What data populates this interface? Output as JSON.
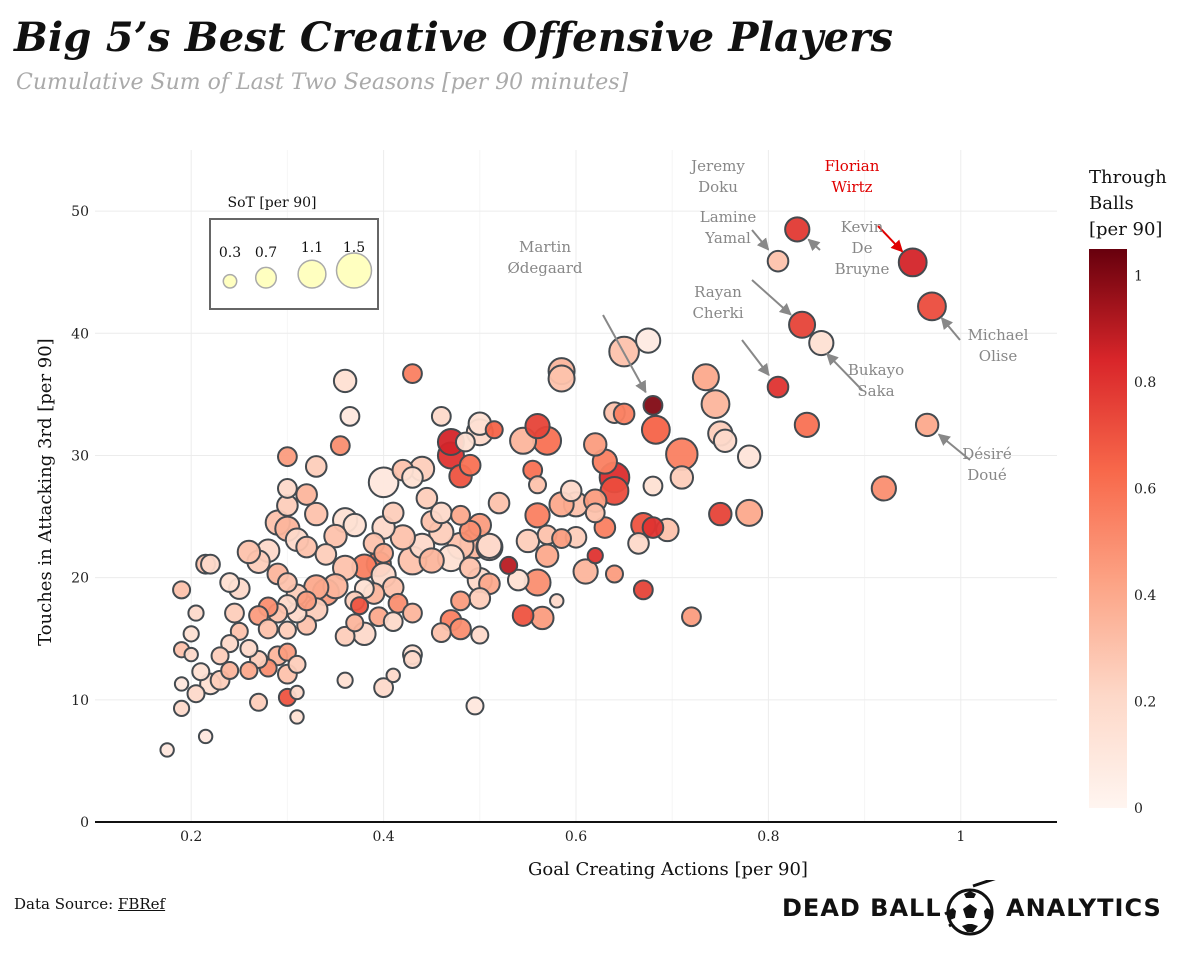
{
  "title": "Big 5’s Best Creative Offensive Players",
  "subtitle": "Cumulative Sum of Last Two Seasons [per 90 minutes]",
  "source": {
    "prefix": "Data Source: ",
    "link": "FBRef"
  },
  "brand": {
    "left": "DEAD BALL",
    "right": "ANALYTICS"
  },
  "colors": {
    "low": "#fff5f0",
    "mid1": "#fcbba1",
    "mid2": "#fb6a4a",
    "mid3": "#cb181d",
    "high": "#67000d",
    "highlight": "#e00000",
    "annotation": "#888888"
  },
  "chart_data": {
    "type": "scatter",
    "title": "Big 5’s Best Creative Offensive Players",
    "xlabel": "Goal Creating Actions [per 90]",
    "ylabel": "Touches in Attacking 3rd [per 90]",
    "xlim": [
      0.1,
      1.1
    ],
    "ylim": [
      0,
      55
    ],
    "xticks": [
      0.2,
      0.4,
      0.6,
      0.8,
      1
    ],
    "xtick_labels": [
      "0.2",
      "0.4",
      "0.6",
      "0.8",
      "1"
    ],
    "yticks": [
      0,
      10,
      20,
      30,
      40,
      50
    ],
    "size_legend": {
      "title": "SoT [per 90]",
      "values": [
        0.3,
        0.7,
        1.1,
        1.5
      ],
      "labels": [
        "0.3",
        "0.7",
        "1.1",
        "1.5"
      ]
    },
    "colorbar": {
      "title_lines": [
        "Through",
        "Balls",
        "[per 90]"
      ],
      "range": [
        0,
        1.05
      ],
      "ticks": [
        0,
        0.2,
        0.4,
        0.6,
        0.8,
        1
      ],
      "tick_labels": [
        "0",
        "0.2",
        "0.4",
        "0.6",
        "0.8",
        "1"
      ]
    },
    "annotations": [
      {
        "lines": [
          "Florian",
          "Wirtz"
        ],
        "player": [
          0.95,
          45.8
        ],
        "highlight": true
      },
      {
        "lines": [
          "Jeremy",
          "Doku"
        ],
        "player": [
          0.81,
          45.9
        ]
      },
      {
        "lines": [
          "Kevin",
          "De",
          "Bruyne"
        ],
        "player": [
          0.83,
          48.5
        ]
      },
      {
        "lines": [
          "Lamine",
          "Yamal"
        ],
        "player": [
          0.835,
          40.7
        ]
      },
      {
        "lines": [
          "Michael",
          "Olise"
        ],
        "player": [
          0.97,
          42.2
        ]
      },
      {
        "lines": [
          "Martin",
          "Ødegaard"
        ],
        "player": [
          0.68,
          34.1
        ]
      },
      {
        "lines": [
          "Rayan",
          "Cherki"
        ],
        "player": [
          0.81,
          35.6
        ]
      },
      {
        "lines": [
          "Bukayo",
          "Saka"
        ],
        "player": [
          0.85,
          39.2
        ]
      },
      {
        "lines": [
          "Désiré",
          "Doué"
        ],
        "player": [
          0.965,
          32.5
        ]
      }
    ],
    "points": [
      [
        0.95,
        45.8,
        1.1,
        0.85
      ],
      [
        0.97,
        42.2,
        1.1,
        0.72
      ],
      [
        0.83,
        48.5,
        0.9,
        0.78
      ],
      [
        0.81,
        45.9,
        0.7,
        0.3
      ],
      [
        0.835,
        40.7,
        1.0,
        0.75
      ],
      [
        0.855,
        39.2,
        0.9,
        0.15
      ],
      [
        0.81,
        35.6,
        0.7,
        0.8
      ],
      [
        0.84,
        32.5,
        0.9,
        0.6
      ],
      [
        0.965,
        32.5,
        0.8,
        0.4
      ],
      [
        0.92,
        27.3,
        0.9,
        0.5
      ],
      [
        0.68,
        34.1,
        0.6,
        1.0
      ],
      [
        0.683,
        32.1,
        1.1,
        0.65
      ],
      [
        0.65,
        38.5,
        1.2,
        0.3
      ],
      [
        0.675,
        39.4,
        0.9,
        0.08
      ],
      [
        0.735,
        36.4,
        1.0,
        0.4
      ],
      [
        0.745,
        34.2,
        1.1,
        0.35
      ],
      [
        0.71,
        30.1,
        1.3,
        0.55
      ],
      [
        0.75,
        31.8,
        0.9,
        0.25
      ],
      [
        0.755,
        31.2,
        0.8,
        0.2
      ],
      [
        0.78,
        29.9,
        0.8,
        0.12
      ],
      [
        0.75,
        25.2,
        0.8,
        0.75
      ],
      [
        0.78,
        25.3,
        1.0,
        0.4
      ],
      [
        0.71,
        28.2,
        0.8,
        0.25
      ],
      [
        0.68,
        27.5,
        0.6,
        0.15
      ],
      [
        0.64,
        28.2,
        1.2,
        0.82
      ],
      [
        0.64,
        27.1,
        1.1,
        0.72
      ],
      [
        0.63,
        29.5,
        0.9,
        0.55
      ],
      [
        0.62,
        30.9,
        0.8,
        0.45
      ],
      [
        0.64,
        33.5,
        0.7,
        0.3
      ],
      [
        0.65,
        33.4,
        0.7,
        0.55
      ],
      [
        0.585,
        36.9,
        1.0,
        0.35
      ],
      [
        0.585,
        36.3,
        1.0,
        0.3
      ],
      [
        0.56,
        32.4,
        0.9,
        0.75
      ],
      [
        0.57,
        31.2,
        1.1,
        0.6
      ],
      [
        0.545,
        31.2,
        1.0,
        0.35
      ],
      [
        0.555,
        28.8,
        0.6,
        0.6
      ],
      [
        0.56,
        27.6,
        0.5,
        0.3
      ],
      [
        0.6,
        26,
        0.9,
        0.3
      ],
      [
        0.62,
        26.3,
        0.8,
        0.45
      ],
      [
        0.63,
        24.1,
        0.7,
        0.55
      ],
      [
        0.67,
        24.3,
        0.9,
        0.7
      ],
      [
        0.68,
        24.1,
        0.7,
        0.8
      ],
      [
        0.665,
        22.8,
        0.7,
        0.2
      ],
      [
        0.695,
        23.9,
        0.8,
        0.3
      ],
      [
        0.67,
        19,
        0.6,
        0.75
      ],
      [
        0.64,
        20.3,
        0.5,
        0.45
      ],
      [
        0.62,
        21.8,
        0.4,
        0.8
      ],
      [
        0.61,
        20.5,
        0.9,
        0.35
      ],
      [
        0.58,
        18.1,
        0.3,
        0.2
      ],
      [
        0.56,
        19.6,
        1.0,
        0.5
      ],
      [
        0.57,
        21.8,
        0.8,
        0.4
      ],
      [
        0.57,
        23.5,
        0.6,
        0.3
      ],
      [
        0.56,
        25.1,
        0.9,
        0.55
      ],
      [
        0.55,
        23,
        0.8,
        0.25
      ],
      [
        0.53,
        21,
        0.5,
        0.9
      ],
      [
        0.54,
        19.8,
        0.7,
        0.15
      ],
      [
        0.545,
        16.9,
        0.7,
        0.7
      ],
      [
        0.565,
        16.7,
        0.8,
        0.45
      ],
      [
        0.51,
        22.6,
        0.9,
        0.2
      ],
      [
        0.52,
        26.1,
        0.7,
        0.3
      ],
      [
        0.515,
        32.1,
        0.5,
        0.65
      ],
      [
        0.5,
        32.6,
        0.8,
        0.15
      ],
      [
        0.5,
        31.9,
        1.0,
        0.2
      ],
      [
        0.49,
        29.2,
        0.7,
        0.6
      ],
      [
        0.47,
        30,
        1.0,
        0.8
      ],
      [
        0.47,
        31.1,
        1.0,
        0.85
      ],
      [
        0.485,
        31.1,
        0.6,
        0.15
      ],
      [
        0.46,
        33.2,
        0.6,
        0.2
      ],
      [
        0.48,
        28.3,
        0.8,
        0.7
      ],
      [
        0.44,
        28.9,
        0.9,
        0.25
      ],
      [
        0.42,
        28.8,
        0.7,
        0.3
      ],
      [
        0.43,
        28.2,
        0.7,
        0.15
      ],
      [
        0.445,
        26.5,
        0.7,
        0.25
      ],
      [
        0.45,
        24.6,
        0.7,
        0.3
      ],
      [
        0.46,
        25.3,
        0.7,
        0.2
      ],
      [
        0.48,
        25.1,
        0.6,
        0.4
      ],
      [
        0.49,
        23.8,
        0.7,
        0.5
      ],
      [
        0.5,
        24.3,
        0.8,
        0.45
      ],
      [
        0.51,
        22.5,
        1.0,
        0.2
      ],
      [
        0.495,
        22.8,
        1.2,
        0.35
      ],
      [
        0.48,
        22.6,
        1.0,
        0.3
      ],
      [
        0.46,
        23.7,
        0.9,
        0.25
      ],
      [
        0.44,
        22.6,
        0.9,
        0.2
      ],
      [
        0.43,
        21.4,
        1.1,
        0.3
      ],
      [
        0.45,
        21.4,
        0.9,
        0.35
      ],
      [
        0.47,
        21.6,
        1.0,
        0.15
      ],
      [
        0.49,
        20.8,
        0.7,
        0.3
      ],
      [
        0.5,
        19.8,
        0.9,
        0.2
      ],
      [
        0.51,
        19.5,
        0.7,
        0.4
      ],
      [
        0.48,
        18.1,
        0.6,
        0.45
      ],
      [
        0.5,
        18.3,
        0.7,
        0.25
      ],
      [
        0.47,
        16.5,
        0.7,
        0.55
      ],
      [
        0.46,
        15.5,
        0.6,
        0.3
      ],
      [
        0.5,
        15.3,
        0.5,
        0.2
      ],
      [
        0.48,
        15.8,
        0.7,
        0.5
      ],
      [
        0.495,
        9.5,
        0.5,
        0.1
      ],
      [
        0.43,
        36.7,
        0.6,
        0.55
      ],
      [
        0.4,
        27.8,
        1.2,
        0.1
      ],
      [
        0.41,
        25.3,
        0.7,
        0.25
      ],
      [
        0.4,
        24.1,
        0.8,
        0.2
      ],
      [
        0.42,
        23.3,
        0.9,
        0.3
      ],
      [
        0.39,
        22.8,
        0.7,
        0.3
      ],
      [
        0.4,
        22,
        0.6,
        0.4
      ],
      [
        0.395,
        21.1,
        0.9,
        0.6
      ],
      [
        0.38,
        20.9,
        0.9,
        0.55
      ],
      [
        0.4,
        20.2,
        0.9,
        0.2
      ],
      [
        0.41,
        19.2,
        0.7,
        0.3
      ],
      [
        0.39,
        18.7,
        0.7,
        0.35
      ],
      [
        0.38,
        19.1,
        0.6,
        0.15
      ],
      [
        0.375,
        17.7,
        0.5,
        0.7
      ],
      [
        0.37,
        18.1,
        0.6,
        0.25
      ],
      [
        0.395,
        16.8,
        0.6,
        0.4
      ],
      [
        0.38,
        15.4,
        0.8,
        0.2
      ],
      [
        0.37,
        16.3,
        0.5,
        0.35
      ],
      [
        0.36,
        15.2,
        0.6,
        0.25
      ],
      [
        0.41,
        16.4,
        0.6,
        0.2
      ],
      [
        0.415,
        17.9,
        0.6,
        0.5
      ],
      [
        0.43,
        17.1,
        0.6,
        0.35
      ],
      [
        0.43,
        13.7,
        0.6,
        0.15
      ],
      [
        0.43,
        13.3,
        0.5,
        0.2
      ],
      [
        0.41,
        12,
        0.3,
        0.2
      ],
      [
        0.4,
        11,
        0.6,
        0.2
      ],
      [
        0.36,
        11.6,
        0.4,
        0.15
      ],
      [
        0.36,
        36.1,
        0.8,
        0.15
      ],
      [
        0.365,
        33.2,
        0.6,
        0.1
      ],
      [
        0.355,
        30.8,
        0.6,
        0.5
      ],
      [
        0.33,
        29.1,
        0.7,
        0.25
      ],
      [
        0.32,
        26.8,
        0.7,
        0.35
      ],
      [
        0.33,
        25.2,
        0.8,
        0.3
      ],
      [
        0.36,
        24.7,
        0.9,
        0.15
      ],
      [
        0.37,
        24.3,
        0.8,
        0.15
      ],
      [
        0.35,
        23.4,
        0.8,
        0.3
      ],
      [
        0.34,
        21.9,
        0.7,
        0.25
      ],
      [
        0.36,
        20.8,
        0.9,
        0.3
      ],
      [
        0.35,
        19.3,
        0.9,
        0.35
      ],
      [
        0.34,
        18.8,
        1.0,
        0.45
      ],
      [
        0.33,
        17.4,
        0.8,
        0.25
      ],
      [
        0.32,
        16.1,
        0.6,
        0.3
      ],
      [
        0.31,
        17.1,
        0.6,
        0.2
      ],
      [
        0.3,
        29.9,
        0.6,
        0.45
      ],
      [
        0.3,
        27.3,
        0.6,
        0.2
      ],
      [
        0.3,
        25.9,
        0.7,
        0.25
      ],
      [
        0.29,
        24.5,
        0.9,
        0.3
      ],
      [
        0.3,
        24,
        0.9,
        0.35
      ],
      [
        0.31,
        23.1,
        0.8,
        0.2
      ],
      [
        0.32,
        22.5,
        0.7,
        0.3
      ],
      [
        0.28,
        22.2,
        0.8,
        0.2
      ],
      [
        0.27,
        21.3,
        0.8,
        0.25
      ],
      [
        0.29,
        20.3,
        0.7,
        0.35
      ],
      [
        0.3,
        19.6,
        0.6,
        0.3
      ],
      [
        0.31,
        18.6,
        0.7,
        0.25
      ],
      [
        0.33,
        19.2,
        0.9,
        0.4
      ],
      [
        0.32,
        18.1,
        0.6,
        0.45
      ],
      [
        0.3,
        17.8,
        0.6,
        0.2
      ],
      [
        0.29,
        17.1,
        0.6,
        0.3
      ],
      [
        0.28,
        17.6,
        0.6,
        0.5
      ],
      [
        0.27,
        16.9,
        0.6,
        0.45
      ],
      [
        0.28,
        15.8,
        0.6,
        0.3
      ],
      [
        0.3,
        15.7,
        0.5,
        0.25
      ],
      [
        0.29,
        13.6,
        0.6,
        0.35
      ],
      [
        0.3,
        13.9,
        0.5,
        0.45
      ],
      [
        0.31,
        12.9,
        0.5,
        0.25
      ],
      [
        0.3,
        12.1,
        0.6,
        0.3
      ],
      [
        0.28,
        12.6,
        0.5,
        0.5
      ],
      [
        0.27,
        13.3,
        0.5,
        0.25
      ],
      [
        0.26,
        14.2,
        0.5,
        0.2
      ],
      [
        0.26,
        12.4,
        0.5,
        0.4
      ],
      [
        0.27,
        9.8,
        0.5,
        0.25
      ],
      [
        0.3,
        10.2,
        0.5,
        0.7
      ],
      [
        0.31,
        10.6,
        0.3,
        0.2
      ],
      [
        0.31,
        8.6,
        0.3,
        0.15
      ],
      [
        0.26,
        22.1,
        0.8,
        0.3
      ],
      [
        0.25,
        19.1,
        0.7,
        0.2
      ],
      [
        0.24,
        19.6,
        0.6,
        0.15
      ],
      [
        0.245,
        17.1,
        0.6,
        0.25
      ],
      [
        0.25,
        15.6,
        0.5,
        0.3
      ],
      [
        0.24,
        14.6,
        0.5,
        0.2
      ],
      [
        0.23,
        13.6,
        0.5,
        0.25
      ],
      [
        0.24,
        12.4,
        0.5,
        0.35
      ],
      [
        0.22,
        11.3,
        0.7,
        0.15
      ],
      [
        0.23,
        11.6,
        0.6,
        0.25
      ],
      [
        0.21,
        12.3,
        0.5,
        0.15
      ],
      [
        0.205,
        10.5,
        0.5,
        0.2
      ],
      [
        0.19,
        14.1,
        0.4,
        0.3
      ],
      [
        0.2,
        13.7,
        0.3,
        0.2
      ],
      [
        0.2,
        15.4,
        0.4,
        0.15
      ],
      [
        0.205,
        17.1,
        0.4,
        0.2
      ],
      [
        0.19,
        19,
        0.5,
        0.3
      ],
      [
        0.215,
        21.1,
        0.6,
        0.3
      ],
      [
        0.22,
        21.1,
        0.6,
        0.2
      ],
      [
        0.19,
        11.3,
        0.3,
        0.1
      ],
      [
        0.19,
        9.3,
        0.4,
        0.2
      ],
      [
        0.215,
        7,
        0.3,
        0.1
      ],
      [
        0.175,
        5.9,
        0.3,
        0.1
      ],
      [
        0.72,
        16.8,
        0.6,
        0.45
      ],
      [
        0.585,
        26,
        0.9,
        0.4
      ],
      [
        0.595,
        27.1,
        0.7,
        0.2
      ],
      [
        0.585,
        23.2,
        0.6,
        0.45
      ],
      [
        0.6,
        23.3,
        0.7,
        0.25
      ],
      [
        0.62,
        25.3,
        0.6,
        0.3
      ]
    ]
  }
}
